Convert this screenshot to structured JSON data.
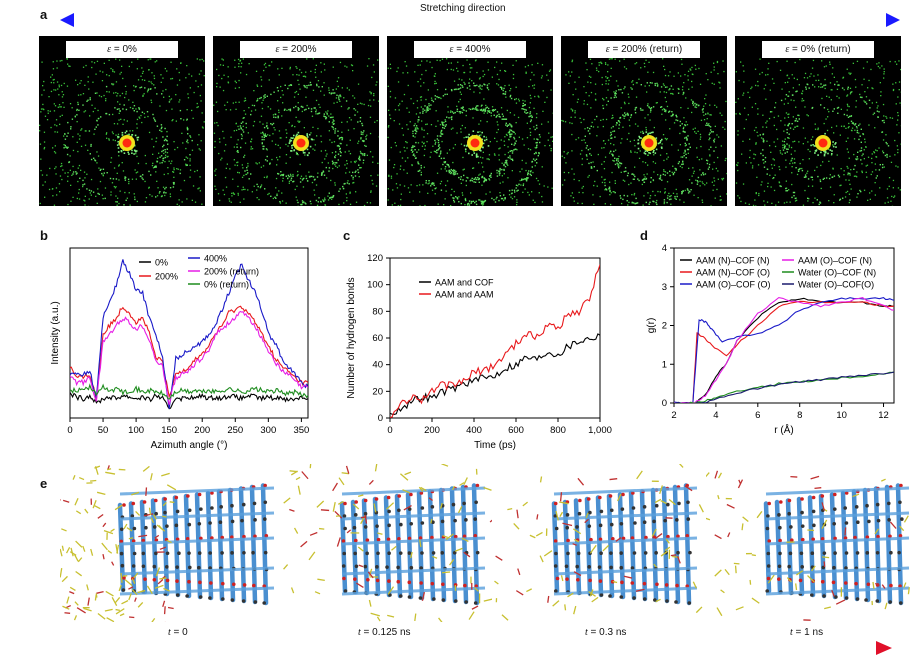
{
  "panel_labels": {
    "a": "a",
    "b": "b",
    "c": "c",
    "d": "d",
    "e": "e"
  },
  "stretch_arrow": {
    "label": "Stretching direction",
    "start_color": "#1a1aff",
    "end_color": "#e0102a"
  },
  "diffraction": [
    {
      "eps_symbol": "ε",
      "value": " = 0%",
      "ring_strength": 0.35
    },
    {
      "eps_symbol": "ε",
      "value": " = 200%",
      "ring_strength": 0.55
    },
    {
      "eps_symbol": "ε",
      "value": " = 400%",
      "ring_strength": 0.9
    },
    {
      "eps_symbol": "ε",
      "value": " = 200% (return)",
      "ring_strength": 0.55
    },
    {
      "eps_symbol": "ε",
      "value": " = 0% (return)",
      "ring_strength": 0.35
    }
  ],
  "time_labels": [
    {
      "t": "t",
      "value": " = 0"
    },
    {
      "t": "t",
      "value": " = 0.125 ns"
    },
    {
      "t": "t",
      "value": " = 0.3 ns"
    },
    {
      "t": "t",
      "value": " = 1 ns"
    }
  ],
  "chart_data": [
    {
      "id": "b",
      "type": "line",
      "xlabel": "Azimuth angle (°)",
      "ylabel": "Intensity (a.u.)",
      "xlim": [
        0,
        360
      ],
      "xticks": [
        0,
        50,
        100,
        150,
        200,
        250,
        300,
        350
      ],
      "legend": [
        {
          "label": "0%",
          "color": "#000000"
        },
        {
          "label": "200%",
          "color": "#e8191c"
        },
        {
          "label": "400%",
          "color": "#1a1ac8"
        },
        {
          "label": "200% (return)",
          "color": "#e61ee6"
        },
        {
          "label": "0% (return)",
          "color": "#1e8c1e"
        }
      ],
      "series": [
        {
          "name": "0%",
          "color": "#000000",
          "x": [
            0,
            10,
            20,
            30,
            40,
            50,
            60,
            70,
            80,
            90,
            100,
            110,
            120,
            130,
            140,
            150,
            160,
            170,
            180,
            190,
            200,
            210,
            220,
            230,
            240,
            250,
            260,
            270,
            280,
            290,
            300,
            310,
            320,
            330,
            340,
            350,
            360
          ],
          "y": [
            0.08,
            0.06,
            0.05,
            0.07,
            0.02,
            0.05,
            0.06,
            0.05,
            0.07,
            0.06,
            0.05,
            0.06,
            0.04,
            0.07,
            0.05,
            -0.02,
            0.06,
            0.05,
            0.06,
            0.05,
            0.07,
            0.05,
            0.06,
            0.05,
            0.07,
            0.06,
            0.05,
            0.07,
            0.06,
            0.05,
            0.06,
            0.05,
            0.06,
            0.04,
            0.05,
            0.06,
            0.05
          ]
        },
        {
          "name": "200%",
          "color": "#e8191c",
          "x": [
            0,
            10,
            20,
            30,
            40,
            50,
            60,
            70,
            80,
            90,
            100,
            110,
            120,
            130,
            140,
            150,
            160,
            170,
            180,
            190,
            200,
            210,
            220,
            230,
            240,
            250,
            260,
            270,
            280,
            290,
            300,
            310,
            320,
            330,
            340,
            350,
            360
          ],
          "y": [
            0.25,
            0.18,
            0.18,
            0.2,
            0.05,
            0.45,
            0.5,
            0.55,
            0.62,
            0.58,
            0.52,
            0.55,
            0.45,
            0.3,
            0.28,
            0.05,
            0.2,
            0.22,
            0.25,
            0.3,
            0.32,
            0.38,
            0.45,
            0.5,
            0.58,
            0.6,
            0.62,
            0.58,
            0.52,
            0.45,
            0.38,
            0.3,
            0.25,
            0.22,
            0.18,
            0.15,
            0.15
          ]
        },
        {
          "name": "400%",
          "color": "#1a1ac8",
          "x": [
            0,
            10,
            20,
            30,
            40,
            50,
            60,
            70,
            80,
            90,
            100,
            110,
            120,
            130,
            140,
            150,
            160,
            170,
            180,
            190,
            200,
            210,
            220,
            230,
            240,
            250,
            260,
            270,
            280,
            290,
            300,
            310,
            320,
            330,
            340,
            350,
            360
          ],
          "y": [
            0.2,
            0.2,
            0.2,
            0.22,
            0.05,
            0.55,
            0.65,
            0.75,
            0.9,
            0.82,
            0.72,
            0.7,
            0.55,
            0.45,
            0.3,
            -0.02,
            0.3,
            0.32,
            0.35,
            0.38,
            0.4,
            0.45,
            0.5,
            0.6,
            0.7,
            0.8,
            0.88,
            0.78,
            0.72,
            0.6,
            0.45,
            0.4,
            0.3,
            0.25,
            0.2,
            0.15,
            0.12
          ]
        },
        {
          "name": "200% (return)",
          "color": "#e61ee6",
          "x": [
            0,
            10,
            20,
            30,
            40,
            50,
            60,
            70,
            80,
            90,
            100,
            110,
            120,
            130,
            140,
            150,
            160,
            170,
            180,
            190,
            200,
            210,
            220,
            230,
            240,
            250,
            260,
            270,
            280,
            290,
            300,
            310,
            320,
            330,
            340,
            350,
            360
          ],
          "y": [
            0.2,
            0.15,
            0.15,
            0.18,
            0.03,
            0.4,
            0.45,
            0.5,
            0.55,
            0.52,
            0.48,
            0.5,
            0.42,
            0.28,
            0.25,
            0.02,
            0.18,
            0.2,
            0.22,
            0.27,
            0.3,
            0.35,
            0.45,
            0.48,
            0.52,
            0.55,
            0.58,
            0.55,
            0.5,
            0.42,
            0.35,
            0.28,
            0.22,
            0.2,
            0.16,
            0.12,
            0.12
          ]
        },
        {
          "name": "0% (return)",
          "color": "#1e8c1e",
          "x": [
            0,
            10,
            20,
            30,
            40,
            50,
            60,
            70,
            80,
            90,
            100,
            110,
            120,
            130,
            140,
            150,
            160,
            170,
            180,
            190,
            200,
            210,
            220,
            230,
            240,
            250,
            260,
            270,
            280,
            290,
            300,
            310,
            320,
            330,
            340,
            350,
            360
          ],
          "y": [
            0.1,
            0.1,
            0.11,
            0.12,
            0.08,
            0.12,
            0.1,
            0.11,
            0.09,
            0.1,
            0.11,
            0.09,
            0.1,
            0.09,
            0.08,
            0.05,
            0.09,
            0.1,
            0.09,
            0.1,
            0.09,
            0.1,
            0.09,
            0.1,
            0.11,
            0.1,
            0.09,
            0.1,
            0.11,
            0.1,
            0.09,
            0.1,
            0.09,
            0.08,
            0.09,
            0.07,
            0.07
          ]
        }
      ]
    },
    {
      "id": "c",
      "type": "line",
      "xlabel": "Time (ps)",
      "ylabel": "Number of hydrogen bonds",
      "xlim": [
        0,
        1000
      ],
      "ylim": [
        0,
        120
      ],
      "xticks": [
        0,
        200,
        400,
        600,
        800,
        1000
      ],
      "xtick_labels": [
        "0",
        "200",
        "400",
        "600",
        "800",
        "1,000"
      ],
      "yticks": [
        0,
        20,
        40,
        60,
        80,
        100,
        120
      ],
      "legend": [
        {
          "label": "AAM and COF",
          "color": "#000000"
        },
        {
          "label": "AAM and AAM",
          "color": "#e8191c"
        }
      ],
      "series": [
        {
          "name": "AAM and COF",
          "color": "#000000",
          "x": [
            0,
            50,
            100,
            150,
            200,
            250,
            300,
            350,
            400,
            450,
            500,
            550,
            600,
            650,
            700,
            750,
            800,
            850,
            900,
            950,
            1000
          ],
          "y": [
            2,
            8,
            12,
            16,
            15,
            20,
            22,
            26,
            28,
            30,
            32,
            38,
            40,
            46,
            44,
            50,
            48,
            54,
            58,
            60,
            62
          ]
        },
        {
          "name": "AAM and AAM",
          "color": "#e8191c",
          "x": [
            0,
            50,
            100,
            150,
            200,
            250,
            300,
            350,
            400,
            450,
            500,
            550,
            600,
            650,
            700,
            750,
            800,
            850,
            900,
            950,
            1000
          ],
          "y": [
            2,
            10,
            16,
            14,
            20,
            25,
            24,
            28,
            34,
            36,
            40,
            48,
            56,
            64,
            60,
            70,
            68,
            78,
            80,
            90,
            115
          ]
        }
      ]
    },
    {
      "id": "d",
      "type": "line",
      "xlabel": "r (Å)",
      "ylabel": "g(r)",
      "xlim": [
        2,
        12.5
      ],
      "ylim": [
        0,
        4
      ],
      "xticks": [
        2,
        4,
        6,
        8,
        10,
        12
      ],
      "yticks": [
        0,
        1,
        2,
        3,
        4
      ],
      "legend": [
        {
          "label": "AAM (N)–COF (N)",
          "color": "#000000"
        },
        {
          "label": "AAM (N)–COF (O)",
          "color": "#e8191c"
        },
        {
          "label": "AAM (O)–COF (O)",
          "color": "#1a1ac8"
        },
        {
          "label": "AAM (O)–COF (N)",
          "color": "#e61ee6"
        },
        {
          "label": "Water (O)–COF (N)",
          "color": "#1e8c1e"
        },
        {
          "label": "Water (O)–COF(O)",
          "color": "#1a1a6e"
        }
      ],
      "series": [
        {
          "name": "AAM (N)–COF (N)",
          "color": "#000000",
          "x": [
            2,
            3,
            3.5,
            4,
            4.5,
            5,
            6,
            7,
            8,
            9,
            10,
            11,
            12,
            12.5
          ],
          "y": [
            0,
            0,
            0.2,
            0.7,
            1.0,
            1.6,
            2.2,
            2.6,
            2.7,
            2.6,
            2.6,
            2.6,
            2.5,
            2.5
          ]
        },
        {
          "name": "AAM (N)–COF (O)",
          "color": "#e8191c",
          "x": [
            2,
            2.9,
            3.1,
            3.4,
            3.8,
            4.5,
            5,
            6,
            7,
            8,
            9,
            10,
            11,
            12,
            12.5
          ],
          "y": [
            0,
            0,
            1.8,
            1.7,
            1.5,
            1.2,
            1.5,
            2.0,
            2.5,
            2.6,
            2.6,
            2.6,
            2.6,
            2.5,
            2.5
          ]
        },
        {
          "name": "AAM (O)–COF (O)",
          "color": "#1a1ac8",
          "x": [
            2,
            2.9,
            3.2,
            3.5,
            3.8,
            4.3,
            5,
            6,
            7,
            8,
            9,
            10,
            11,
            12,
            12.5
          ],
          "y": [
            0,
            0,
            2.15,
            2.1,
            1.9,
            1.6,
            1.7,
            1.8,
            2.0,
            2.4,
            2.6,
            2.7,
            2.7,
            2.7,
            2.65
          ]
        },
        {
          "name": "AAM (O)–COF (N)",
          "color": "#e61ee6",
          "x": [
            2,
            3,
            3.5,
            4,
            4.5,
            5,
            6,
            7,
            8,
            9,
            10,
            11,
            12,
            12.5
          ],
          "y": [
            0,
            0,
            0.2,
            0.6,
            1.0,
            1.6,
            2.3,
            2.7,
            2.6,
            2.5,
            2.6,
            2.7,
            2.5,
            2.4
          ]
        },
        {
          "name": "Water (O)–COF (N)",
          "color": "#1e8c1e",
          "x": [
            2,
            3,
            3.5,
            4,
            5,
            6,
            7,
            8,
            9,
            10,
            11,
            12,
            12.5
          ],
          "y": [
            0,
            0,
            0.05,
            0.15,
            0.3,
            0.4,
            0.5,
            0.55,
            0.6,
            0.65,
            0.7,
            0.75,
            0.8
          ]
        },
        {
          "name": "Water (O)–COF(O)",
          "color": "#1a1a6e",
          "x": [
            2,
            3,
            3.5,
            4,
            5,
            6,
            7,
            8,
            9,
            10,
            11,
            12,
            12.5
          ],
          "y": [
            0,
            0,
            0.02,
            0.1,
            0.25,
            0.38,
            0.48,
            0.55,
            0.6,
            0.66,
            0.71,
            0.76,
            0.8
          ]
        }
      ]
    }
  ]
}
